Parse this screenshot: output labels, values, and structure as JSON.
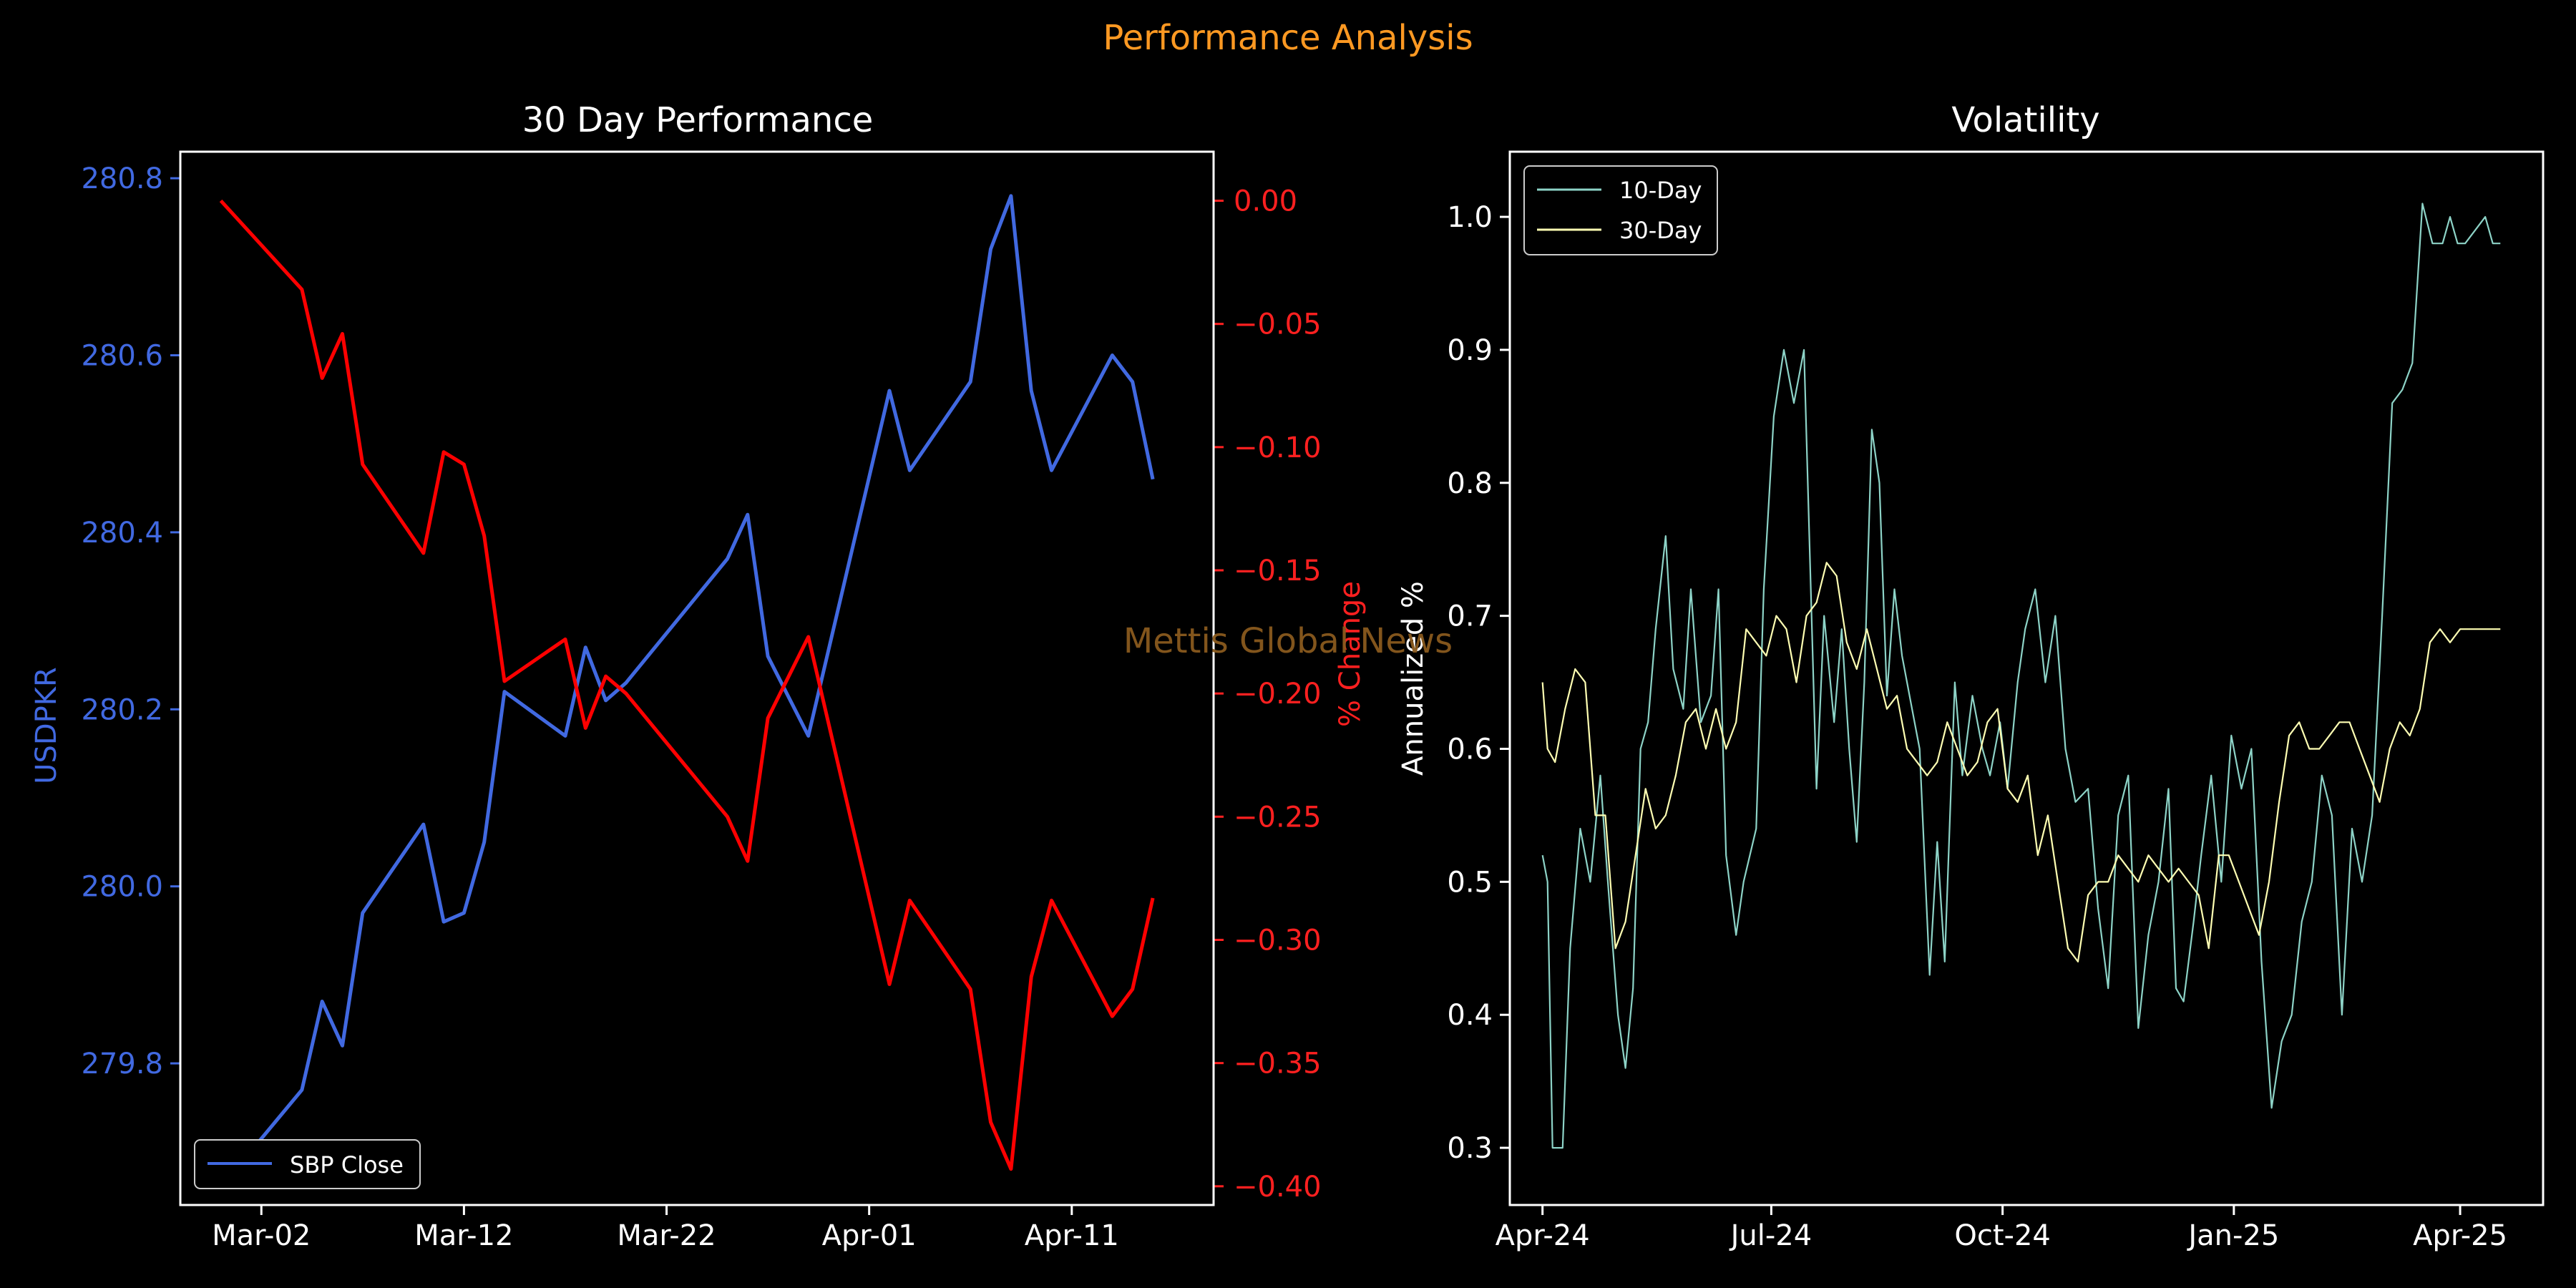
{
  "figure": {
    "title": "Performance Analysis",
    "watermark": "Mettis Global News",
    "background": "#000000",
    "title_color": "#ff9922",
    "watermark_color": "#8a5a1e"
  },
  "chart_data": [
    {
      "type": "line",
      "title": "30 Day Performance",
      "xlabel": "",
      "ylabel": "USDPKR",
      "y2label": "% Change",
      "x_ticks": [
        "Mar-02",
        "Mar-12",
        "Mar-22",
        "Apr-01",
        "Apr-11"
      ],
      "x_tick_dates": [
        "2025-03-02",
        "2025-03-12",
        "2025-03-22",
        "2025-04-01",
        "2025-04-11"
      ],
      "ylim": [
        279.64,
        280.83
      ],
      "y_ticks": [
        279.8,
        280.0,
        280.2,
        280.4,
        280.6,
        280.8
      ],
      "y2lim": [
        -0.4076,
        0.0199
      ],
      "y2_ticks": [
        0.0,
        -0.05,
        -0.1,
        -0.15,
        -0.2,
        -0.25,
        -0.3,
        -0.35,
        -0.4
      ],
      "y2_tick_labels": [
        "0.00",
        "−0.05",
        "−0.10",
        "−0.15",
        "−0.20",
        "−0.25",
        "−0.30",
        "−0.35",
        "−0.40"
      ],
      "legend": "lower-left",
      "grid": false,
      "series": [
        {
          "name": "SBP Close",
          "axis": "left",
          "color": "#4169e1",
          "x": [
            "2025-02-28",
            "2025-03-04",
            "2025-03-05",
            "2025-03-06",
            "2025-03-07",
            "2025-03-10",
            "2025-03-11",
            "2025-03-12",
            "2025-03-13",
            "2025-03-14",
            "2025-03-17",
            "2025-03-18",
            "2025-03-19",
            "2025-03-20",
            "2025-03-25",
            "2025-03-26",
            "2025-03-27",
            "2025-03-29",
            "2025-04-02",
            "2025-04-03",
            "2025-04-06",
            "2025-04-07",
            "2025-04-08",
            "2025-04-09",
            "2025-04-10",
            "2025-04-13",
            "2025-04-14",
            "2025-04-15"
          ],
          "values": [
            279.66,
            279.77,
            279.87,
            279.82,
            279.97,
            280.07,
            279.96,
            279.97,
            280.05,
            280.22,
            280.17,
            280.27,
            280.21,
            280.23,
            280.37,
            280.42,
            280.26,
            280.17,
            280.56,
            280.47,
            280.57,
            280.72,
            280.78,
            280.56,
            280.47,
            280.6,
            280.57,
            280.46
          ]
        },
        {
          "name": "% Change",
          "axis": "right",
          "color": "#ff0000",
          "x": [
            "2025-02-28",
            "2025-03-04",
            "2025-03-05",
            "2025-03-06",
            "2025-03-07",
            "2025-03-10",
            "2025-03-11",
            "2025-03-12",
            "2025-03-13",
            "2025-03-14",
            "2025-03-17",
            "2025-03-18",
            "2025-03-19",
            "2025-03-20",
            "2025-03-25",
            "2025-03-26",
            "2025-03-27",
            "2025-03-29",
            "2025-04-02",
            "2025-04-03",
            "2025-04-06",
            "2025-04-07",
            "2025-04-08",
            "2025-04-09",
            "2025-04-10",
            "2025-04-13",
            "2025-04-14",
            "2025-04-15"
          ],
          "values": [
            0.0,
            -0.036,
            -0.072,
            -0.054,
            -0.107,
            -0.143,
            -0.102,
            -0.107,
            -0.136,
            -0.195,
            -0.178,
            -0.214,
            -0.193,
            -0.2,
            -0.25,
            -0.268,
            -0.21,
            -0.177,
            -0.318,
            -0.284,
            -0.32,
            -0.374,
            -0.393,
            -0.315,
            -0.284,
            -0.331,
            -0.32,
            -0.283
          ]
        }
      ]
    },
    {
      "type": "line",
      "title": "Volatility",
      "xlabel": "",
      "ylabel": "Annualized %",
      "x_ticks": [
        "Apr-24",
        "Jul-24",
        "Oct-24",
        "Jan-25",
        "Apr-25"
      ],
      "x_tick_dates": [
        "2024-04-01",
        "2024-07-01",
        "2024-10-01",
        "2025-01-01",
        "2025-04-01"
      ],
      "ylim": [
        0.257,
        1.049
      ],
      "y_ticks": [
        0.3,
        0.4,
        0.5,
        0.6,
        0.7,
        0.8,
        0.9,
        1.0
      ],
      "legend": "upper-left",
      "grid": false,
      "series": [
        {
          "name": "10-Day",
          "color": "#8dd3c7",
          "x": [
            "2024-04-01",
            "2024-04-03",
            "2024-04-05",
            "2024-04-09",
            "2024-04-12",
            "2024-04-16",
            "2024-04-20",
            "2024-04-24",
            "2024-04-27",
            "2024-05-01",
            "2024-05-04",
            "2024-05-07",
            "2024-05-10",
            "2024-05-13",
            "2024-05-16",
            "2024-05-20",
            "2024-05-23",
            "2024-05-27",
            "2024-05-30",
            "2024-06-03",
            "2024-06-07",
            "2024-06-10",
            "2024-06-13",
            "2024-06-17",
            "2024-06-20",
            "2024-06-25",
            "2024-06-28",
            "2024-07-02",
            "2024-07-06",
            "2024-07-10",
            "2024-07-14",
            "2024-07-19",
            "2024-07-22",
            "2024-07-26",
            "2024-07-29",
            "2024-08-01",
            "2024-08-04",
            "2024-08-07",
            "2024-08-10",
            "2024-08-13",
            "2024-08-16",
            "2024-08-19",
            "2024-08-22",
            "2024-08-26",
            "2024-08-29",
            "2024-09-02",
            "2024-09-05",
            "2024-09-08",
            "2024-09-12",
            "2024-09-15",
            "2024-09-19",
            "2024-09-23",
            "2024-09-26",
            "2024-09-30",
            "2024-10-03",
            "2024-10-07",
            "2024-10-10",
            "2024-10-14",
            "2024-10-18",
            "2024-10-22",
            "2024-10-26",
            "2024-10-30",
            "2024-11-04",
            "2024-11-08",
            "2024-11-12",
            "2024-11-16",
            "2024-11-20",
            "2024-11-24",
            "2024-11-28",
            "2024-12-02",
            "2024-12-06",
            "2024-12-09",
            "2024-12-12",
            "2024-12-16",
            "2024-12-19",
            "2024-12-23",
            "2024-12-27",
            "2024-12-31",
            "2025-01-04",
            "2025-01-08",
            "2025-01-12",
            "2025-01-16",
            "2025-01-20",
            "2025-01-24",
            "2025-01-28",
            "2025-02-01",
            "2025-02-05",
            "2025-02-09",
            "2025-02-13",
            "2025-02-17",
            "2025-02-21",
            "2025-02-25",
            "2025-03-01",
            "2025-03-05",
            "2025-03-09",
            "2025-03-13",
            "2025-03-17",
            "2025-03-21",
            "2025-03-25",
            "2025-03-28",
            "2025-03-31",
            "2025-04-03",
            "2025-04-07",
            "2025-04-11",
            "2025-04-14",
            "2025-04-17"
          ],
          "values": [
            0.52,
            0.5,
            0.3,
            0.3,
            0.45,
            0.54,
            0.5,
            0.58,
            0.5,
            0.4,
            0.36,
            0.42,
            0.6,
            0.62,
            0.69,
            0.76,
            0.66,
            0.63,
            0.72,
            0.62,
            0.64,
            0.72,
            0.52,
            0.46,
            0.5,
            0.54,
            0.72,
            0.85,
            0.9,
            0.86,
            0.9,
            0.57,
            0.7,
            0.62,
            0.69,
            0.6,
            0.53,
            0.65,
            0.84,
            0.8,
            0.64,
            0.72,
            0.67,
            0.63,
            0.6,
            0.43,
            0.53,
            0.44,
            0.65,
            0.58,
            0.64,
            0.6,
            0.58,
            0.62,
            0.57,
            0.65,
            0.69,
            0.72,
            0.65,
            0.7,
            0.6,
            0.56,
            0.57,
            0.48,
            0.42,
            0.55,
            0.58,
            0.39,
            0.46,
            0.5,
            0.57,
            0.42,
            0.41,
            0.47,
            0.52,
            0.58,
            0.5,
            0.61,
            0.57,
            0.6,
            0.44,
            0.33,
            0.38,
            0.4,
            0.47,
            0.5,
            0.58,
            0.55,
            0.4,
            0.54,
            0.5,
            0.55,
            0.7,
            0.86,
            0.87,
            0.89,
            1.01,
            0.98,
            0.98,
            1.0,
            0.98,
            0.98,
            0.99,
            1.0,
            0.98,
            0.98
          ]
        },
        {
          "name": "30-Day",
          "color": "#ffffb3",
          "x": [
            "2024-04-01",
            "2024-04-03",
            "2024-04-06",
            "2024-04-10",
            "2024-04-14",
            "2024-04-18",
            "2024-04-22",
            "2024-04-26",
            "2024-04-30",
            "2024-05-04",
            "2024-05-08",
            "2024-05-12",
            "2024-05-16",
            "2024-05-20",
            "2024-05-24",
            "2024-05-28",
            "2024-06-01",
            "2024-06-05",
            "2024-06-09",
            "2024-06-13",
            "2024-06-17",
            "2024-06-21",
            "2024-06-25",
            "2024-06-29",
            "2024-07-03",
            "2024-07-07",
            "2024-07-11",
            "2024-07-15",
            "2024-07-19",
            "2024-07-23",
            "2024-07-27",
            "2024-07-31",
            "2024-08-04",
            "2024-08-08",
            "2024-08-12",
            "2024-08-16",
            "2024-08-20",
            "2024-08-24",
            "2024-08-28",
            "2024-09-01",
            "2024-09-05",
            "2024-09-09",
            "2024-09-13",
            "2024-09-17",
            "2024-09-21",
            "2024-09-25",
            "2024-09-29",
            "2024-10-03",
            "2024-10-07",
            "2024-10-11",
            "2024-10-15",
            "2024-10-19",
            "2024-10-23",
            "2024-10-27",
            "2024-10-31",
            "2024-11-04",
            "2024-11-08",
            "2024-11-12",
            "2024-11-16",
            "2024-11-20",
            "2024-11-24",
            "2024-11-28",
            "2024-12-02",
            "2024-12-06",
            "2024-12-10",
            "2024-12-14",
            "2024-12-18",
            "2024-12-22",
            "2024-12-26",
            "2024-12-30",
            "2025-01-03",
            "2025-01-07",
            "2025-01-11",
            "2025-01-15",
            "2025-01-19",
            "2025-01-23",
            "2025-01-27",
            "2025-01-31",
            "2025-02-04",
            "2025-02-08",
            "2025-02-12",
            "2025-02-16",
            "2025-02-20",
            "2025-02-24",
            "2025-02-28",
            "2025-03-04",
            "2025-03-08",
            "2025-03-12",
            "2025-03-16",
            "2025-03-20",
            "2025-03-24",
            "2025-03-28",
            "2025-04-01",
            "2025-04-05",
            "2025-04-09",
            "2025-04-13",
            "2025-04-17"
          ],
          "values": [
            0.65,
            0.6,
            0.59,
            0.63,
            0.66,
            0.65,
            0.55,
            0.55,
            0.45,
            0.47,
            0.52,
            0.57,
            0.54,
            0.55,
            0.58,
            0.62,
            0.63,
            0.6,
            0.63,
            0.6,
            0.62,
            0.69,
            0.68,
            0.67,
            0.7,
            0.69,
            0.65,
            0.7,
            0.71,
            0.74,
            0.73,
            0.68,
            0.66,
            0.69,
            0.66,
            0.63,
            0.64,
            0.6,
            0.59,
            0.58,
            0.59,
            0.62,
            0.6,
            0.58,
            0.59,
            0.62,
            0.63,
            0.57,
            0.56,
            0.58,
            0.52,
            0.55,
            0.5,
            0.45,
            0.44,
            0.49,
            0.5,
            0.5,
            0.52,
            0.51,
            0.5,
            0.52,
            0.51,
            0.5,
            0.51,
            0.5,
            0.49,
            0.45,
            0.52,
            0.52,
            0.5,
            0.48,
            0.46,
            0.5,
            0.56,
            0.61,
            0.62,
            0.6,
            0.6,
            0.61,
            0.62,
            0.62,
            0.6,
            0.58,
            0.56,
            0.6,
            0.62,
            0.61,
            0.63,
            0.68,
            0.69,
            0.68,
            0.69,
            0.69,
            0.69,
            0.69,
            0.69
          ]
        }
      ]
    }
  ]
}
